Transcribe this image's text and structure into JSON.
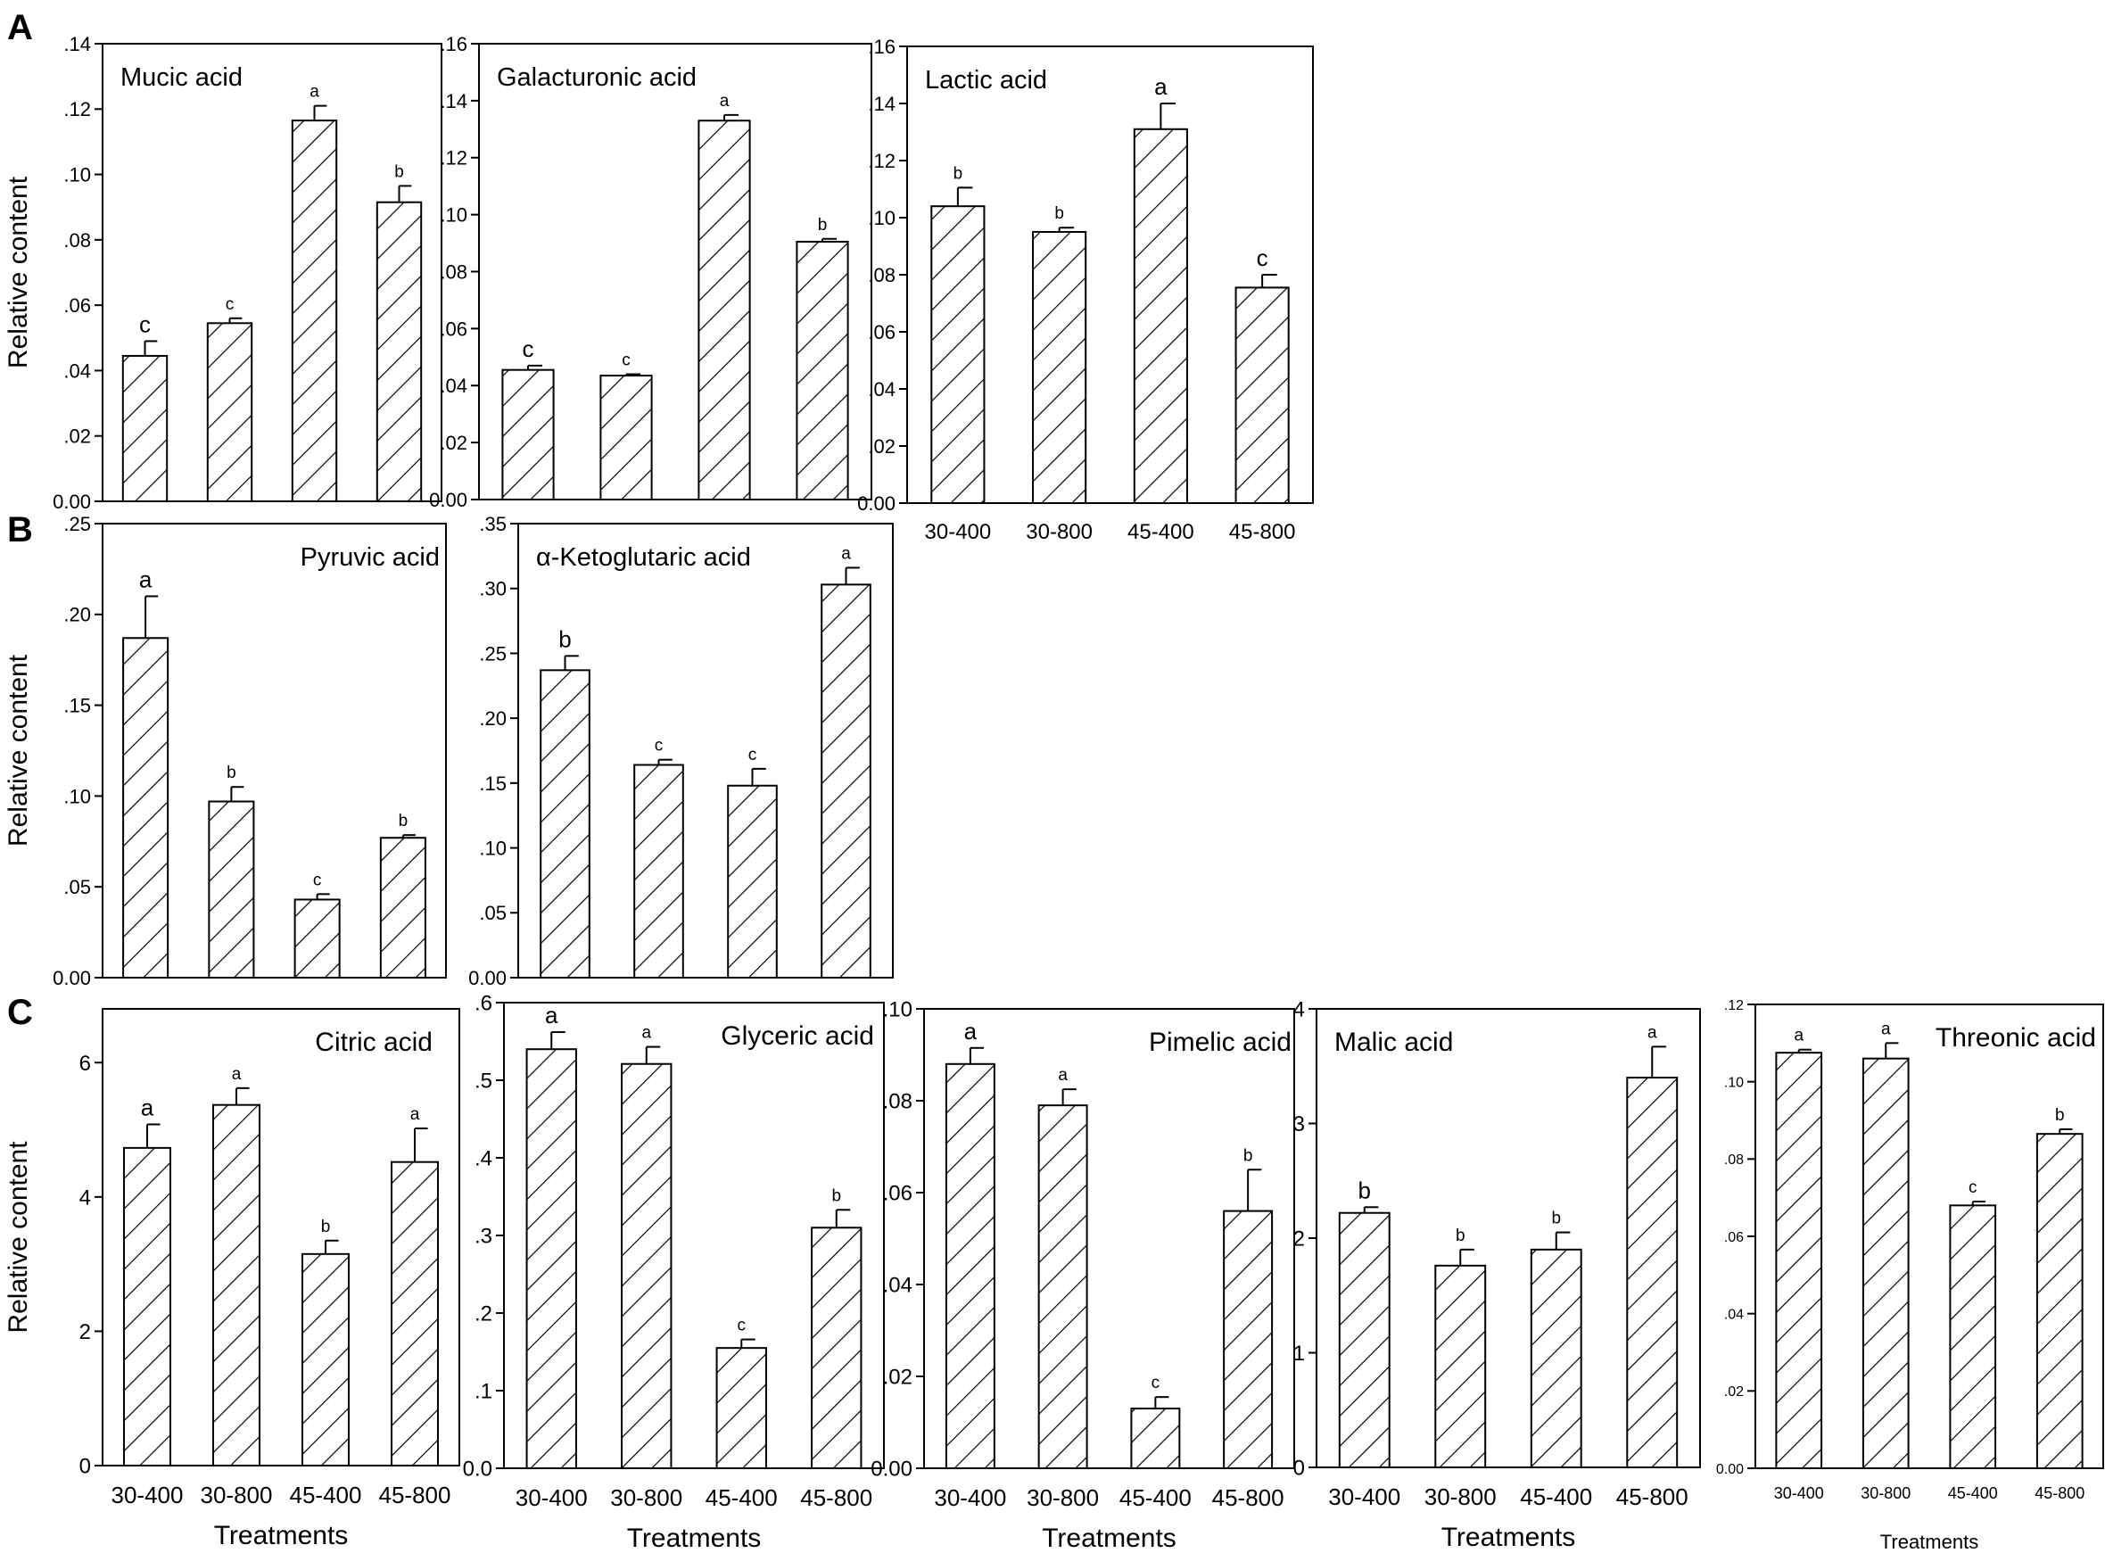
{
  "figure": {
    "section_labels": [
      "A",
      "B",
      "C"
    ],
    "treatments": [
      "30-400",
      "30-800",
      "45-400",
      "45-800"
    ],
    "ylabel": "Relative content",
    "xlabel": "Treatments"
  },
  "colors": {
    "axis": "#000000",
    "bar_fill": "#ffffff",
    "hatch": "#000000",
    "background": "#ffffff"
  },
  "chart_data": [
    {
      "id": "mucic",
      "type": "bar",
      "title": "Mucic acid",
      "categories": [
        "30-400",
        "30-800",
        "45-400",
        "45-800"
      ],
      "values": [
        0.0445,
        0.0545,
        0.1165,
        0.0915
      ],
      "errors": [
        0.0045,
        0.0015,
        0.0045,
        0.005
      ],
      "letters": [
        "c",
        "c",
        "a",
        "b"
      ],
      "ylim": [
        0,
        0.14
      ],
      "yticks": [
        0,
        0.02,
        0.04,
        0.06,
        0.08,
        0.1,
        0.12,
        0.14
      ],
      "ytick_labels": [
        "0.00",
        ".02",
        ".04",
        ".06",
        ".08",
        ".10",
        ".12",
        ".14"
      ],
      "ylabel": "Relative content",
      "xlabel": "",
      "show_xticklabels": false,
      "legend": "none"
    },
    {
      "id": "galacturonic",
      "type": "bar",
      "title": "Galacturonic acid",
      "categories": [
        "30-400",
        "30-800",
        "45-400",
        "45-800"
      ],
      "values": [
        0.0455,
        0.0435,
        0.133,
        0.0905
      ],
      "errors": [
        0.0015,
        0.0005,
        0.002,
        0.001
      ],
      "letters": [
        "c",
        "c",
        "a",
        "b"
      ],
      "ylim": [
        0,
        0.16
      ],
      "yticks": [
        0,
        0.02,
        0.04,
        0.06,
        0.08,
        0.1,
        0.12,
        0.14,
        0.16
      ],
      "ytick_labels": [
        "0.00",
        ".02",
        ".04",
        ".06",
        ".08",
        ".10",
        ".12",
        ".14",
        ".16"
      ],
      "ylabel": "",
      "xlabel": "",
      "show_xticklabels": false,
      "legend": "none"
    },
    {
      "id": "lactic",
      "type": "bar",
      "title": "Lactic acid",
      "categories": [
        "30-400",
        "30-800",
        "45-400",
        "45-800"
      ],
      "values": [
        0.104,
        0.095,
        0.131,
        0.0755
      ],
      "errors": [
        0.0065,
        0.0015,
        0.009,
        0.0045
      ],
      "letters": [
        "b",
        "b",
        "a",
        "c"
      ],
      "ylim": [
        0,
        0.16
      ],
      "yticks": [
        0,
        0.02,
        0.04,
        0.06,
        0.08,
        0.1,
        0.12,
        0.14,
        0.16
      ],
      "ytick_labels": [
        "0.00",
        ".02",
        ".04",
        ".06",
        ".08",
        ".10",
        ".12",
        ".14",
        ".16"
      ],
      "ylabel": "",
      "xlabel": "",
      "show_xticklabels": true,
      "legend": "none"
    },
    {
      "id": "pyruvic",
      "type": "bar",
      "title": "Pyruvic acid",
      "categories": [
        "30-400",
        "30-800",
        "45-400",
        "45-800"
      ],
      "values": [
        0.187,
        0.097,
        0.043,
        0.077
      ],
      "errors": [
        0.023,
        0.008,
        0.003,
        0.0015
      ],
      "letters": [
        "a",
        "b",
        "c",
        "b"
      ],
      "ylim": [
        0,
        0.25
      ],
      "yticks": [
        0,
        0.05,
        0.1,
        0.15,
        0.2,
        0.25
      ],
      "ytick_labels": [
        "0.00",
        ".05",
        ".10",
        ".15",
        ".20",
        ".25"
      ],
      "ylabel": "Relative content",
      "xlabel": "",
      "show_xticklabels": false,
      "legend": "none"
    },
    {
      "id": "ketoglutaric",
      "type": "bar",
      "title": "α-Ketoglutaric acid",
      "categories": [
        "30-400",
        "30-800",
        "45-400",
        "45-800"
      ],
      "values": [
        0.237,
        0.164,
        0.148,
        0.303
      ],
      "errors": [
        0.011,
        0.004,
        0.013,
        0.013
      ],
      "letters": [
        "b",
        "c",
        "c",
        "a"
      ],
      "ylim": [
        0,
        0.35
      ],
      "yticks": [
        0,
        0.05,
        0.1,
        0.15,
        0.2,
        0.25,
        0.3,
        0.35
      ],
      "ytick_labels": [
        "0.00",
        ".05",
        ".10",
        ".15",
        ".20",
        ".25",
        ".30",
        ".35"
      ],
      "ylabel": "",
      "xlabel": "",
      "show_xticklabels": false,
      "legend": "none"
    },
    {
      "id": "citric",
      "type": "bar",
      "title": "Citric acid",
      "categories": [
        "30-400",
        "30-800",
        "45-400",
        "45-800"
      ],
      "values": [
        4.73,
        5.37,
        3.15,
        4.52
      ],
      "errors": [
        0.35,
        0.25,
        0.2,
        0.5
      ],
      "letters": [
        "a",
        "a",
        "b",
        "a"
      ],
      "ylim": [
        0,
        6.8
      ],
      "yticks": [
        0,
        2,
        4,
        6
      ],
      "ytick_labels": [
        "0",
        "2",
        "4",
        "6"
      ],
      "ylabel": "Relative content",
      "xlabel": "Treatments",
      "show_xticklabels": true,
      "legend": "none"
    },
    {
      "id": "glyceric",
      "type": "bar",
      "title": "Glyceric acid",
      "categories": [
        "30-400",
        "30-800",
        "45-400",
        "45-800"
      ],
      "values": [
        0.54,
        0.521,
        0.155,
        0.31
      ],
      "errors": [
        0.022,
        0.022,
        0.011,
        0.023
      ],
      "letters": [
        "a",
        "a",
        "c",
        "b"
      ],
      "ylim": [
        0,
        0.6
      ],
      "yticks": [
        0,
        0.1,
        0.2,
        0.3,
        0.4,
        0.5,
        0.6
      ],
      "ytick_labels": [
        "0.0",
        ".1",
        ".2",
        ".3",
        ".4",
        ".5",
        ".6"
      ],
      "ylabel": "",
      "xlabel": "Treatments",
      "show_xticklabels": true,
      "legend": "none"
    },
    {
      "id": "pimelic",
      "type": "bar",
      "title": "Pimelic acid",
      "categories": [
        "30-400",
        "30-800",
        "45-400",
        "45-800"
      ],
      "values": [
        0.088,
        0.079,
        0.013,
        0.056
      ],
      "errors": [
        0.0035,
        0.0035,
        0.0025,
        0.009
      ],
      "letters": [
        "a",
        "a",
        "c",
        "b"
      ],
      "ylim": [
        0,
        0.1
      ],
      "yticks": [
        0,
        0.02,
        0.04,
        0.06,
        0.08,
        0.1
      ],
      "ytick_labels": [
        "0.00",
        ".02",
        ".04",
        ".06",
        ".08",
        ".10"
      ],
      "ylabel": "",
      "xlabel": "Treatments",
      "show_xticklabels": true,
      "legend": "none"
    },
    {
      "id": "malic",
      "type": "bar",
      "title": "Malic acid",
      "categories": [
        "30-400",
        "30-800",
        "45-400",
        "45-800"
      ],
      "values": [
        2.22,
        1.76,
        1.9,
        3.4
      ],
      "errors": [
        0.05,
        0.14,
        0.15,
        0.27
      ],
      "letters": [
        "b",
        "b",
        "b",
        "a"
      ],
      "ylim": [
        0,
        4
      ],
      "yticks": [
        0,
        1,
        2,
        3,
        4
      ],
      "ytick_labels": [
        "0",
        "1",
        "2",
        "3",
        "4"
      ],
      "ylabel": "",
      "xlabel": "Treatments",
      "show_xticklabels": true,
      "legend": "none"
    },
    {
      "id": "threonic",
      "type": "bar",
      "title": "Threonic acid",
      "categories": [
        "30-400",
        "30-800",
        "45-400",
        "45-800"
      ],
      "values": [
        0.1075,
        0.106,
        0.068,
        0.0865
      ],
      "errors": [
        0.0008,
        0.004,
        0.001,
        0.0012
      ],
      "letters": [
        "a",
        "a",
        "c",
        "b"
      ],
      "ylim": [
        0,
        0.12
      ],
      "yticks": [
        0,
        0.02,
        0.04,
        0.06,
        0.08,
        0.1,
        0.12
      ],
      "ytick_labels": [
        "0.00",
        ".02",
        ".04",
        ".06",
        ".08",
        ".10",
        ".12"
      ],
      "ylabel": "",
      "xlabel": "Treatments",
      "show_xticklabels": true,
      "legend": "none"
    }
  ]
}
